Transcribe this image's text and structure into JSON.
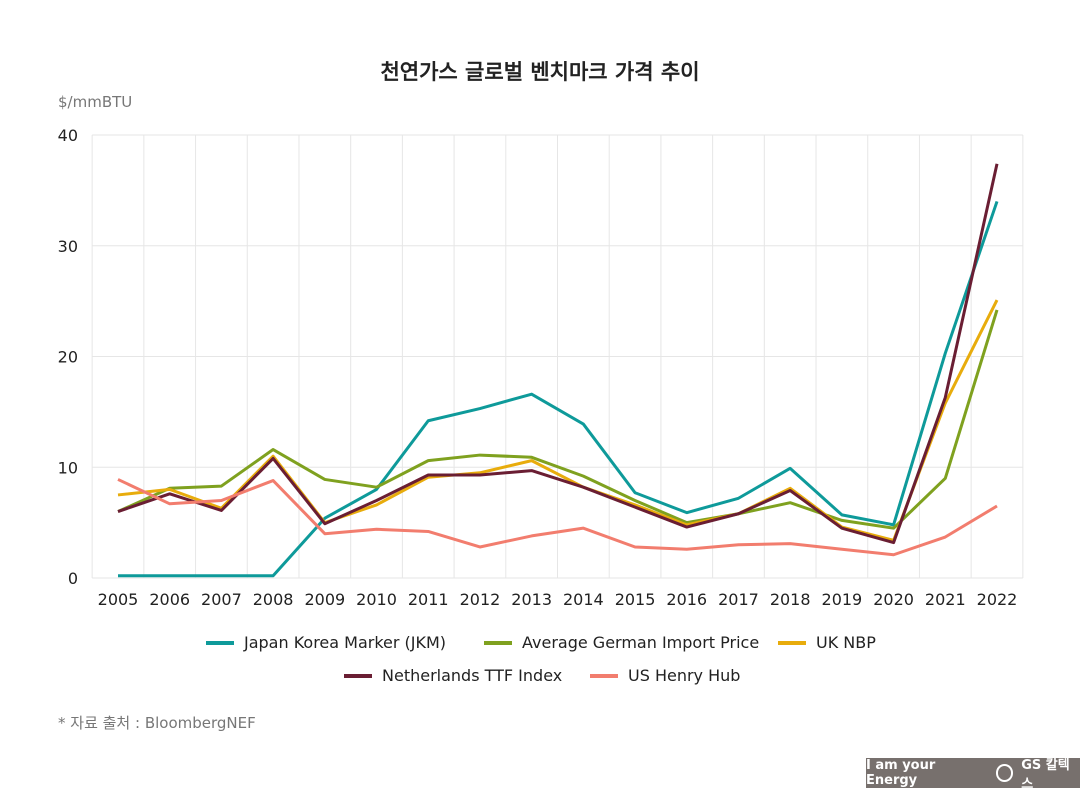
{
  "chart_data": {
    "type": "line",
    "title": "천연가스 글로벌 벤치마크 가격 추이",
    "ylabel": "$/mmBTU",
    "ylim": [
      0,
      40
    ],
    "yticks": [
      "0",
      "10",
      "20",
      "30",
      "40"
    ],
    "grid": true,
    "legend_position": "bottom",
    "x": [
      "2005",
      "2006",
      "2007",
      "2008",
      "2009",
      "2010",
      "2011",
      "2012",
      "2013",
      "2014",
      "2015",
      "2016",
      "2017",
      "2018",
      "2019",
      "2020",
      "2021",
      "2022"
    ],
    "series": [
      {
        "name": "Japan Korea Marker (JKM)",
        "color": "#0e9a9a",
        "values": [
          0.2,
          0.2,
          0.2,
          0.2,
          5.4,
          8.0,
          14.2,
          15.3,
          16.6,
          13.9,
          7.7,
          5.9,
          7.2,
          9.9,
          5.7,
          4.8,
          20.3,
          34.0
        ]
      },
      {
        "name": "Average German Import Price",
        "color": "#7fa11f",
        "values": [
          6.0,
          8.1,
          8.3,
          11.6,
          8.9,
          8.2,
          10.6,
          11.1,
          10.9,
          9.2,
          7.0,
          5.0,
          5.8,
          6.8,
          5.2,
          4.5,
          9.0,
          24.2
        ]
      },
      {
        "name": "UK NBP",
        "color": "#e8ac0c",
        "values": [
          7.5,
          8.0,
          6.3,
          11.0,
          5.0,
          6.6,
          9.1,
          9.5,
          10.6,
          8.2,
          6.6,
          4.8,
          5.8,
          8.1,
          4.6,
          3.4,
          15.8,
          25.1
        ]
      },
      {
        "name": "Netherlands TTF Index",
        "color": "#6a1e33",
        "values": [
          6.0,
          7.6,
          6.1,
          10.8,
          4.9,
          7.0,
          9.3,
          9.3,
          9.7,
          8.2,
          6.4,
          4.6,
          5.8,
          7.9,
          4.5,
          3.2,
          16.3,
          37.4
        ]
      },
      {
        "name": "US Henry Hub",
        "color": "#f27d6e",
        "values": [
          8.9,
          6.7,
          7.0,
          8.8,
          4.0,
          4.4,
          4.2,
          2.8,
          3.8,
          4.5,
          2.8,
          2.6,
          3.0,
          3.1,
          2.6,
          2.1,
          3.7,
          6.5
        ]
      }
    ]
  },
  "footer": {
    "source": "* 자료 출처 : BloombergNEF",
    "brand": "I am your Energy",
    "logo": "GS 칼텍스"
  }
}
